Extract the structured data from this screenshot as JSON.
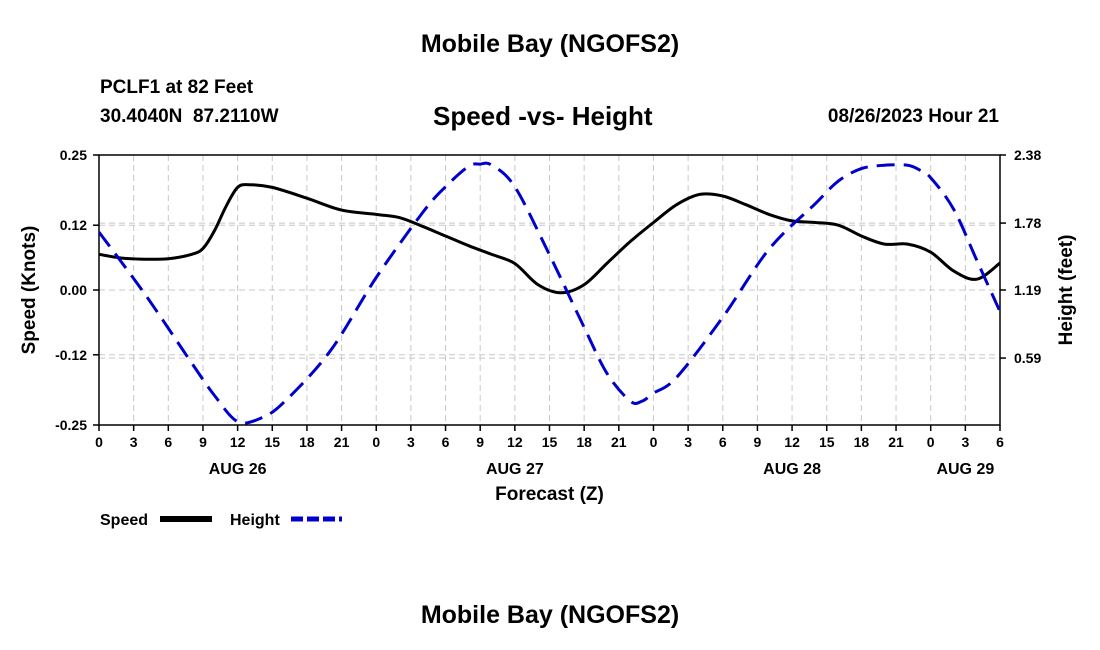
{
  "header": {
    "title": "Mobile Bay (NGOFS2)",
    "station": "PCLF1 at 82 Feet",
    "coords": "30.4040N  87.2110W",
    "subtitle": "Speed -vs- Height",
    "datetime": "08/26/2023 Hour 21"
  },
  "footer": {
    "title": "Mobile Bay (NGOFS2)"
  },
  "chart_data": {
    "type": "line",
    "title": "Speed -vs- Height",
    "xlabel": "Forecast (Z)",
    "ylabel": "Speed (Knots)",
    "ylabel_right": "Height (feet)",
    "x_range_hours": [
      0,
      78
    ],
    "x_tick_labels": [
      "0",
      "3",
      "6",
      "9",
      "12",
      "15",
      "18",
      "21",
      "0",
      "3",
      "6",
      "9",
      "12",
      "15",
      "18",
      "21",
      "0",
      "3",
      "6",
      "9",
      "12",
      "15",
      "18",
      "21",
      "0",
      "3",
      "6"
    ],
    "day_labels": [
      {
        "label": "AUG 26",
        "hour": 12
      },
      {
        "label": "AUG 27",
        "hour": 36
      },
      {
        "label": "AUG 28",
        "hour": 60
      },
      {
        "label": "AUG 29",
        "hour": 75
      }
    ],
    "ylim_left": [
      -0.25,
      0.25
    ],
    "y_ticks_left": [
      "0.25",
      "0.12",
      "0.00",
      "-0.12",
      "-0.25"
    ],
    "ylim_right": [
      0.0,
      2.38
    ],
    "y_ticks_right": [
      "2.38",
      "1.78",
      "1.19",
      "0.59"
    ],
    "grid": true,
    "legend_position": "bottom-left",
    "colors": {
      "speed": "#000000",
      "height": "#0000cc"
    },
    "series": [
      {
        "name": "Speed",
        "axis": "left",
        "style": "solid",
        "x": [
          0,
          2,
          4,
          6,
          8,
          9,
          10,
          11,
          12,
          13,
          15,
          18,
          21,
          24,
          26,
          28,
          30,
          32,
          34,
          36,
          38,
          40,
          42,
          44,
          46,
          48,
          50,
          52,
          54,
          56,
          58,
          60,
          62,
          64,
          66,
          68,
          70,
          72,
          74,
          76,
          78
        ],
        "values": [
          0.066,
          0.059,
          0.057,
          0.058,
          0.066,
          0.077,
          0.11,
          0.155,
          0.19,
          0.195,
          0.19,
          0.17,
          0.148,
          0.14,
          0.134,
          0.118,
          0.1,
          0.082,
          0.066,
          0.049,
          0.01,
          -0.005,
          0.01,
          0.05,
          0.09,
          0.125,
          0.158,
          0.177,
          0.174,
          0.158,
          0.14,
          0.128,
          0.125,
          0.12,
          0.1,
          0.085,
          0.085,
          0.07,
          0.035,
          0.02,
          0.05
        ]
      },
      {
        "name": "Height",
        "axis": "right",
        "style": "dashed",
        "x": [
          0,
          4,
          8,
          10,
          12,
          14,
          16,
          20,
          24,
          28,
          30,
          32,
          33,
          34,
          36,
          39,
          42,
          44,
          46,
          47,
          48,
          50,
          54,
          58,
          62,
          64,
          66,
          68,
          70,
          71,
          72,
          74,
          76,
          78
        ],
        "values": [
          1.7,
          1.15,
          0.55,
          0.26,
          0.03,
          0.06,
          0.2,
          0.65,
          1.3,
          1.87,
          2.1,
          2.28,
          2.3,
          2.29,
          2.1,
          1.5,
          0.86,
          0.45,
          0.21,
          0.21,
          0.28,
          0.42,
          0.95,
          1.55,
          1.95,
          2.15,
          2.26,
          2.29,
          2.29,
          2.25,
          2.18,
          1.9,
          1.45,
          1.0
        ]
      }
    ]
  }
}
